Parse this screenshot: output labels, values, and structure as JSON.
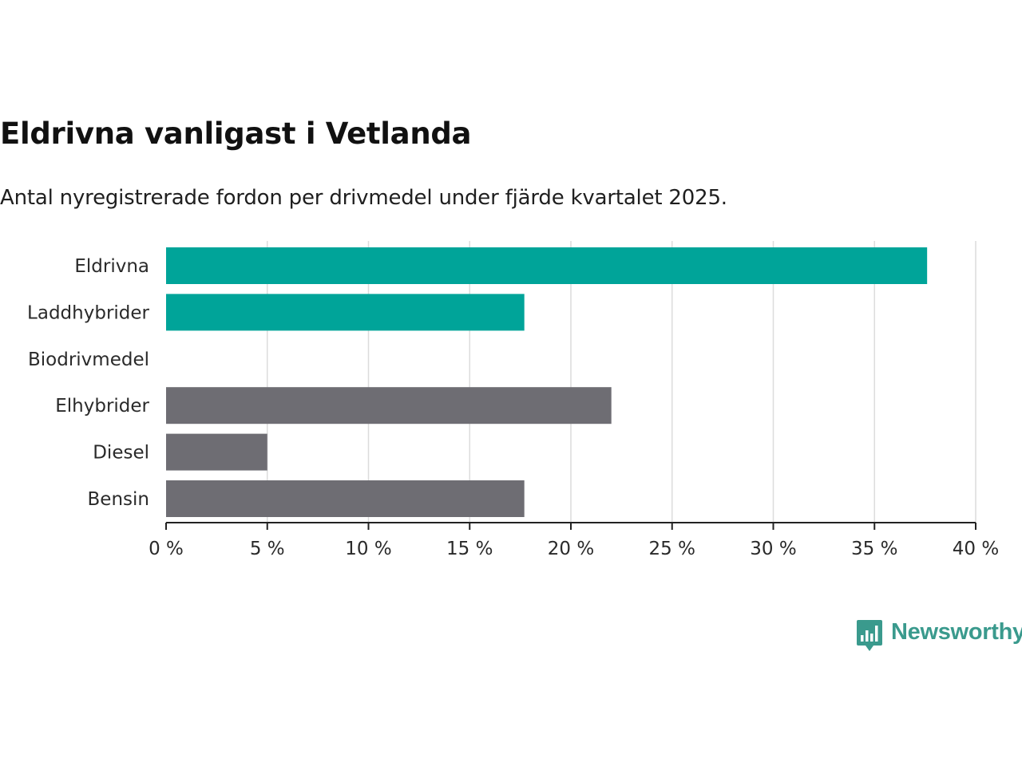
{
  "title": "Eldrivna vanligast i Vetlanda",
  "subtitle": "Antal nyregistrerade fordon per drivmedel under fjärde kvartalet 2025.",
  "brand": {
    "name": "Newsworthy",
    "icon": "bar-chart-speech-bubble-icon",
    "color": "#3a9a8d"
  },
  "colors": {
    "highlight": "#00a499",
    "other": "#6e6d73",
    "grid": "#dcdcdc",
    "axis": "#222222",
    "text": "#2a2a2a"
  },
  "chart_data": {
    "type": "bar",
    "orientation": "horizontal",
    "title": "Eldrivna vanligast i Vetlanda",
    "subtitle": "Antal nyregistrerade fordon per drivmedel under fjärde kvartalet 2025.",
    "categories": [
      "Eldrivna",
      "Laddhybrider",
      "Biodrivmedel",
      "Elhybrider",
      "Diesel",
      "Bensin"
    ],
    "values": [
      37.6,
      17.7,
      0,
      22.0,
      5.0,
      17.7
    ],
    "highlight": [
      true,
      true,
      true,
      false,
      false,
      false
    ],
    "xlim": [
      0,
      40
    ],
    "xticks": [
      0,
      5,
      10,
      15,
      20,
      25,
      30,
      35,
      40
    ],
    "xtick_labels": [
      "0 %",
      "5 %",
      "10 %",
      "15 %",
      "20 %",
      "25 %",
      "30 %",
      "35 %",
      "40 %"
    ],
    "unit": "%",
    "grid": true,
    "xlabel": "",
    "ylabel": ""
  }
}
